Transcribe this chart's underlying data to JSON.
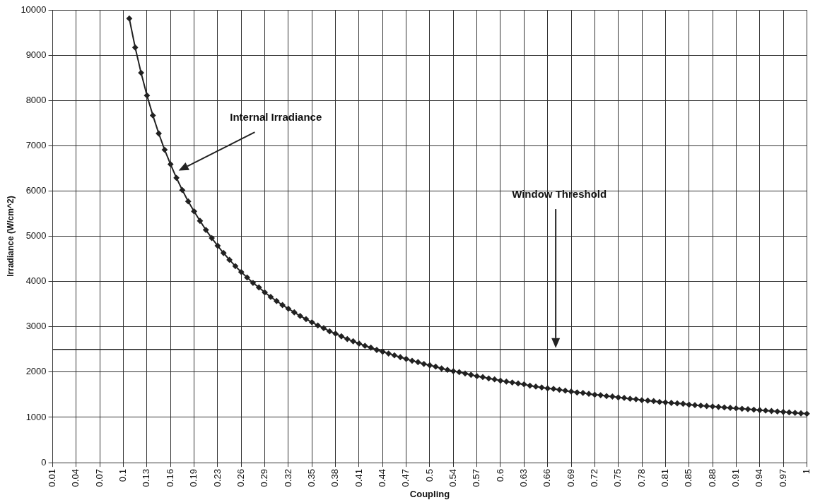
{
  "chart_data": {
    "type": "line",
    "xlabel": "Coupling",
    "ylabel": "Irradiance (W/cm^2)",
    "categories": [
      "0.01",
      null,
      null,
      null,
      "0.04",
      null,
      null,
      null,
      "0.07",
      null,
      null,
      null,
      "0.1",
      null,
      null,
      null,
      "0.13",
      null,
      null,
      null,
      "0.16",
      null,
      null,
      null,
      "0.19",
      null,
      null,
      null,
      "0.23",
      null,
      null,
      null,
      "0.26",
      null,
      null,
      null,
      "0.29",
      null,
      null,
      null,
      "0.32",
      null,
      null,
      null,
      "0.35",
      null,
      null,
      null,
      "0.38",
      null,
      null,
      null,
      "0.41",
      null,
      null,
      null,
      "0.44",
      null,
      null,
      null,
      "0.47",
      null,
      null,
      null,
      "0.5",
      null,
      null,
      null,
      "0.54",
      null,
      null,
      null,
      "0.57",
      null,
      null,
      null,
      "0.6",
      null,
      null,
      null,
      "0.63",
      null,
      null,
      null,
      "0.66",
      null,
      null,
      null,
      "0.69",
      null,
      null,
      null,
      "0.72",
      null,
      null,
      null,
      "0.75",
      null,
      null,
      null,
      "0.78",
      null,
      null,
      null,
      "0.81",
      null,
      null,
      null,
      "0.85",
      null,
      null,
      null,
      "0.88",
      null,
      null,
      null,
      "0.91",
      null,
      null,
      null,
      "0.94",
      null,
      null,
      null,
      "0.97",
      null,
      null,
      null,
      "1"
    ],
    "series": [
      {
        "color": "#222222",
        "values": [
          null,
          null,
          null,
          null,
          null,
          null,
          null,
          null,
          null,
          null,
          null,
          null,
          null,
          9810,
          9170,
          8610,
          8110,
          7670,
          7270,
          6910,
          6590,
          6290,
          6020,
          5770,
          5550,
          5340,
          5140,
          4960,
          4790,
          4630,
          4480,
          4340,
          4210,
          4090,
          3970,
          3870,
          3760,
          3660,
          3570,
          3480,
          3400,
          3320,
          3240,
          3170,
          3100,
          3030,
          2970,
          2900,
          2850,
          2790,
          2730,
          2680,
          2630,
          2580,
          2540,
          2490,
          2450,
          2410,
          2370,
          2330,
          2290,
          2250,
          2220,
          2180,
          2150,
          2120,
          2080,
          2050,
          2020,
          2000,
          1970,
          1940,
          1910,
          1890,
          1860,
          1840,
          1810,
          1790,
          1770,
          1750,
          1730,
          1700,
          1680,
          1660,
          1640,
          1630,
          1610,
          1590,
          1570,
          1550,
          1540,
          1520,
          1500,
          1490,
          1470,
          1460,
          1440,
          1430,
          1410,
          1400,
          1380,
          1370,
          1360,
          1340,
          1330,
          1320,
          1310,
          1300,
          1280,
          1270,
          1260,
          1250,
          1240,
          1230,
          1220,
          1210,
          1200,
          1190,
          1180,
          1170,
          1160,
          1150,
          1140,
          1130,
          1120,
          1110,
          1100,
          1090,
          1080
        ]
      }
    ],
    "ylim": [
      0,
      10000
    ],
    "yticks": [
      0,
      1000,
      2000,
      3000,
      4000,
      5000,
      6000,
      7000,
      8000,
      9000,
      10000
    ],
    "grid": true,
    "legend": false,
    "marker": "diamond",
    "line_style": "solid",
    "ref_lines": [
      {
        "axis": "y",
        "value": 2500,
        "label": "Window Threshold",
        "color": "#222222"
      }
    ],
    "annotations": [
      "Internal Irradiance"
    ]
  }
}
